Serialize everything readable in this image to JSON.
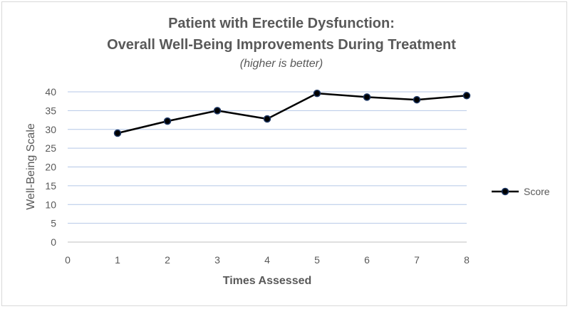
{
  "chart_data": {
    "type": "line",
    "title_line1": "Patient with Erectile Dysfunction:",
    "title_line2": "Overall Well-Being Improvements During Treatment",
    "subtitle": "(higher is better)",
    "xlabel": "Times Assessed",
    "ylabel": "Well-Being Scale",
    "xlim": [
      0,
      8
    ],
    "ylim": [
      0,
      40
    ],
    "x_ticks": [
      0,
      1,
      2,
      3,
      4,
      5,
      6,
      7,
      8
    ],
    "y_ticks": [
      0,
      5,
      10,
      15,
      20,
      25,
      30,
      35,
      40
    ],
    "grid": true,
    "legend_position": "right",
    "series": [
      {
        "name": "Score",
        "color": "#000000",
        "marker_color": "#1f3864",
        "x": [
          1,
          2,
          3,
          4,
          5,
          6,
          7,
          8
        ],
        "y": [
          29,
          32.2,
          35,
          32.8,
          39.6,
          38.6,
          37.9,
          39
        ]
      }
    ]
  }
}
